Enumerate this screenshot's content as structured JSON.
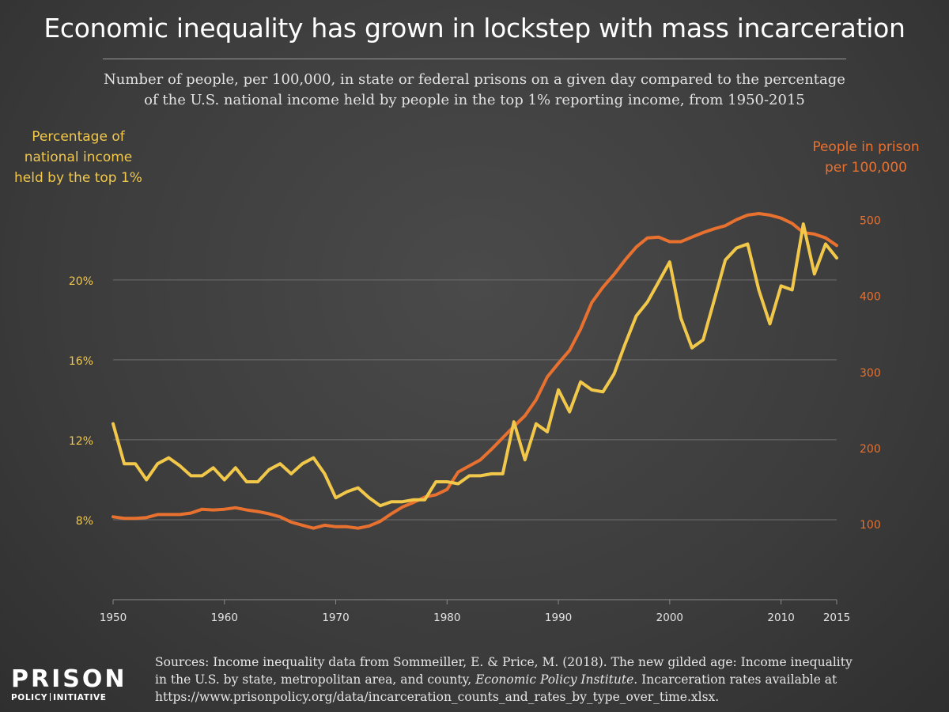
{
  "chart_data": {
    "type": "line",
    "title": "Economic inequality has grown in lockstep with mass incarceration",
    "subtitle_line1": "Number of people, per 100,000, in state or federal prisons on a given day compared to the percentage",
    "subtitle_line2": "of the U.S. national income held by people in the top 1% reporting income, from 1950-2015",
    "y_left_label": [
      "Percentage of",
      "national income",
      "held by the top 1%"
    ],
    "y_right_label": [
      "People in prison",
      "per 100,000"
    ],
    "x": [
      1950,
      1951,
      1952,
      1953,
      1954,
      1955,
      1956,
      1957,
      1958,
      1959,
      1960,
      1961,
      1962,
      1963,
      1964,
      1965,
      1966,
      1967,
      1968,
      1969,
      1970,
      1971,
      1972,
      1973,
      1974,
      1975,
      1976,
      1977,
      1978,
      1979,
      1980,
      1981,
      1982,
      1983,
      1984,
      1985,
      1986,
      1987,
      1988,
      1989,
      1990,
      1991,
      1992,
      1993,
      1994,
      1995,
      1996,
      1997,
      1998,
      1999,
      2000,
      2001,
      2002,
      2003,
      2004,
      2005,
      2006,
      2007,
      2008,
      2009,
      2010,
      2011,
      2012,
      2013,
      2014,
      2015
    ],
    "x_ticks": [
      1950,
      1960,
      1970,
      1980,
      1990,
      2000,
      2010,
      2015
    ],
    "y_left_ticks": [
      8,
      12,
      16,
      20
    ],
    "y_left_tick_labels": [
      "8%",
      "12%",
      "16%",
      "20%"
    ],
    "y_left_range": [
      4,
      25.3
    ],
    "y_right_ticks": [
      100,
      200,
      300,
      400,
      500
    ],
    "y_right_tick_labels": [
      "100",
      "200",
      "300",
      "400",
      "500"
    ],
    "y_right_range": [
      0,
      560
    ],
    "grid": true,
    "series": [
      {
        "name": "Percentage of national income held by the top 1%",
        "axis": "left",
        "color": "#f2c84b",
        "values": [
          12.8,
          10.8,
          10.8,
          10.0,
          10.8,
          11.1,
          10.7,
          10.2,
          10.2,
          10.6,
          10.0,
          10.6,
          9.9,
          9.9,
          10.5,
          10.8,
          10.3,
          10.8,
          11.1,
          10.3,
          9.1,
          9.4,
          9.6,
          9.1,
          8.7,
          8.9,
          8.9,
          9.0,
          9.0,
          9.9,
          9.9,
          9.8,
          10.2,
          10.2,
          10.3,
          10.3,
          12.9,
          11.0,
          12.8,
          12.4,
          14.5,
          13.4,
          14.9,
          14.5,
          14.4,
          15.3,
          16.8,
          18.2,
          18.9,
          19.9,
          20.9,
          18.1,
          16.6,
          17.0,
          19.0,
          21.0,
          21.6,
          21.8,
          19.5,
          17.8,
          19.7,
          19.5,
          22.8,
          20.3,
          21.8,
          21.1
        ]
      },
      {
        "name": "People in prison per 100,000",
        "axis": "right",
        "color": "#e8712f",
        "values": [
          109,
          107,
          107,
          108,
          112,
          112,
          112,
          114,
          119,
          118,
          119,
          121,
          118,
          116,
          113,
          109,
          102,
          98,
          94,
          98,
          96,
          96,
          94,
          97,
          103,
          113,
          122,
          128,
          135,
          138,
          145,
          168,
          176,
          184,
          198,
          213,
          228,
          242,
          263,
          293,
          311,
          328,
          356,
          391,
          411,
          428,
          447,
          464,
          476,
          477,
          471,
          471,
          477,
          483,
          488,
          492,
          500,
          506,
          508,
          506,
          502,
          495,
          483,
          481,
          476,
          466
        ]
      }
    ]
  },
  "sources": {
    "line1": "Sources: Income inequality data from Sommeiller, E. & Price, M. (2018). The new gilded age: Income inequality",
    "line2_pre": "in the U.S. by state, metropolitan area, and county, ",
    "line2_em": "Economic Policy Institute",
    "line2_post": ". Incarceration rates available at",
    "line3": "https://www.prisonpolicy.org/data/incarceration_counts_and_rates_by_type_over_time.xlsx."
  },
  "logo": {
    "top": "PRISON",
    "bottom_left": "POLICY",
    "bottom_right": "INITIATIVE"
  },
  "colors": {
    "income_line": "#f2c84b",
    "prison_line": "#e8712f",
    "gridline": "#6e6e6e",
    "background": "#3c3c3c"
  }
}
